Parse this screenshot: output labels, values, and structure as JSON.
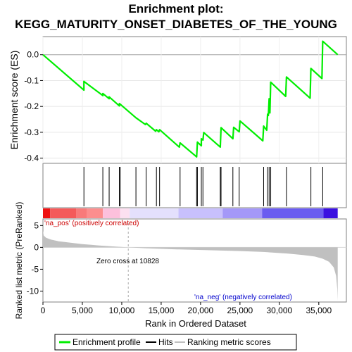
{
  "title": {
    "line1": "Enrichment plot:",
    "line2": "KEGG_MATURITY_ONSET_DIABETES_OF_THE_YOUNG"
  },
  "chart_data": [
    {
      "type": "line",
      "name": "enrichment-profile",
      "ylabel": "Enrichment score (ES)",
      "xlim": [
        0,
        38500
      ],
      "ylim": [
        -0.42,
        0.07
      ],
      "yticks": [
        0.0,
        -0.1,
        -0.2,
        -0.3,
        -0.4
      ],
      "ytick_labels": [
        "0.0",
        "-0.1",
        "-0.2",
        "-0.3",
        "-0.4"
      ],
      "line_color": "#00ee00",
      "points": [
        [
          0,
          0.0
        ],
        [
          5200,
          -0.137
        ],
        [
          5200,
          -0.103
        ],
        [
          7600,
          -0.158
        ],
        [
          7600,
          -0.15
        ],
        [
          8400,
          -0.17
        ],
        [
          8400,
          -0.163
        ],
        [
          9700,
          -0.198
        ],
        [
          9700,
          -0.189
        ],
        [
          11800,
          -0.244
        ],
        [
          13000,
          -0.27
        ],
        [
          13100,
          -0.265
        ],
        [
          14300,
          -0.296
        ],
        [
          14400,
          -0.29
        ],
        [
          14700,
          -0.298
        ],
        [
          14800,
          -0.29
        ],
        [
          17300,
          -0.357
        ],
        [
          17400,
          -0.341
        ],
        [
          19500,
          -0.395
        ],
        [
          19600,
          -0.338
        ],
        [
          20100,
          -0.352
        ],
        [
          20100,
          -0.325
        ],
        [
          20300,
          -0.33
        ],
        [
          20400,
          -0.301
        ],
        [
          22500,
          -0.357
        ],
        [
          22600,
          -0.282
        ],
        [
          24100,
          -0.325
        ],
        [
          24200,
          -0.281
        ],
        [
          24900,
          -0.298
        ],
        [
          25000,
          -0.256
        ],
        [
          27900,
          -0.333
        ],
        [
          28000,
          -0.276
        ],
        [
          28400,
          -0.292
        ],
        [
          28500,
          -0.23
        ],
        [
          28600,
          -0.235
        ],
        [
          28700,
          -0.17
        ],
        [
          28800,
          -0.225
        ],
        [
          28900,
          -0.106
        ],
        [
          30800,
          -0.161
        ],
        [
          30900,
          -0.086
        ],
        [
          33900,
          -0.168
        ],
        [
          34000,
          -0.053
        ],
        [
          35400,
          -0.092
        ],
        [
          35500,
          0.052
        ],
        [
          37400,
          0.0
        ]
      ],
      "hits": [
        5200,
        7600,
        8400,
        9700,
        9800,
        11800,
        13100,
        14400,
        14800,
        17400,
        19500,
        19600,
        20100,
        20300,
        22500,
        22600,
        24100,
        24900,
        28000,
        28500,
        28700,
        28900,
        30900,
        34000,
        35500
      ]
    },
    {
      "type": "area",
      "name": "ranked-list-metric",
      "xlabel": "Rank in Ordered Dataset",
      "ylabel": "Ranked list metric (PreRanked)",
      "xlim": [
        0,
        38500
      ],
      "ylim": [
        -12.5,
        6.5
      ],
      "xticks": [
        0,
        5000,
        10000,
        15000,
        20000,
        25000,
        30000,
        35000
      ],
      "xtick_labels": [
        "0",
        "5,000",
        "10,000",
        "15,000",
        "20,000",
        "25,000",
        "30,000",
        "35,000"
      ],
      "yticks": [
        5,
        0,
        -5,
        -10
      ],
      "ytick_labels": [
        "5",
        "0",
        "-5",
        "-10"
      ],
      "fill_color": "#c0c0c0",
      "profile": [
        [
          0,
          3.8
        ],
        [
          100,
          2.7
        ],
        [
          400,
          2.2
        ],
        [
          1000,
          1.8
        ],
        [
          2000,
          1.4
        ],
        [
          3500,
          1.05
        ],
        [
          5000,
          0.75
        ],
        [
          7000,
          0.45
        ],
        [
          9000,
          0.2
        ],
        [
          10828,
          0.0
        ],
        [
          13000,
          -0.2
        ],
        [
          17000,
          -0.45
        ],
        [
          21000,
          -0.65
        ],
        [
          25000,
          -0.85
        ],
        [
          28000,
          -1.05
        ],
        [
          31000,
          -1.4
        ],
        [
          33000,
          -1.75
        ],
        [
          34500,
          -2.1
        ],
        [
          35500,
          -2.6
        ],
        [
          36300,
          -3.3
        ],
        [
          36900,
          -4.6
        ],
        [
          37200,
          -6.5
        ],
        [
          37350,
          -9.5
        ],
        [
          37400,
          -12.2
        ]
      ],
      "zero_cross_label": "Zero cross at 10828",
      "zero_cross": 10828,
      "pos_label": "'na_pos' (positively correlated)",
      "neg_label": "'na_neg' (negatively correlated)",
      "pos_label_color": "#cc0000",
      "neg_label_color": "#0000cc"
    }
  ],
  "colorbar": {
    "segments": [
      {
        "from": 0,
        "to": 900,
        "color": "#ee1111"
      },
      {
        "from": 900,
        "to": 4200,
        "color": "#f45a5a"
      },
      {
        "from": 4200,
        "to": 5600,
        "color": "#f87a7a"
      },
      {
        "from": 5600,
        "to": 7600,
        "color": "#fc8e8e"
      },
      {
        "from": 7600,
        "to": 9800,
        "color": "#fcc0dc"
      },
      {
        "from": 9800,
        "to": 11000,
        "color": "#fce0f0"
      },
      {
        "from": 11000,
        "to": 17200,
        "color": "#e4e0fc"
      },
      {
        "from": 17200,
        "to": 22800,
        "color": "#c8c0fc"
      },
      {
        "from": 22800,
        "to": 27800,
        "color": "#a498f8"
      },
      {
        "from": 27800,
        "to": 35600,
        "color": "#6a5cf0"
      },
      {
        "from": 35600,
        "to": 37400,
        "color": "#3a10e0"
      }
    ]
  },
  "legend": {
    "items": [
      {
        "label": "Enrichment profile",
        "color": "#00ee00"
      },
      {
        "label": "Hits",
        "color": "#000000"
      },
      {
        "label": "Ranking metric scores",
        "color": "#c0c0c0"
      }
    ]
  }
}
